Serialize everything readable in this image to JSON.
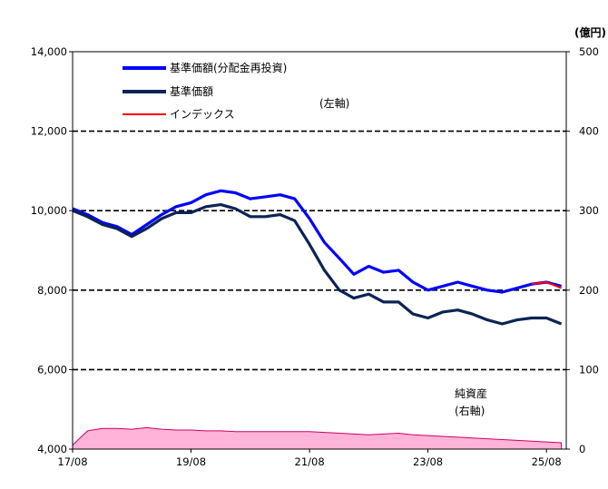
{
  "chart_data": {
    "type": "line",
    "right_unit": "(億円)",
    "left_axis": {
      "ylim": [
        4000,
        14000
      ],
      "ticks": [
        "4,000",
        "6,000",
        "8,000",
        "10,000",
        "12,000",
        "14,000"
      ]
    },
    "right_axis": {
      "ylim": [
        0,
        500
      ],
      "ticks": [
        "0",
        "100",
        "200",
        "300",
        "400",
        "500"
      ]
    },
    "x_ticks": [
      "17/08",
      "19/08",
      "21/08",
      "23/08",
      "25/08"
    ],
    "grid": "dashed horizontal lines at 6,000 / 8,000 / 10,000 / 12,000",
    "legend": {
      "placement": "top-left",
      "items": [
        {
          "label": "基準価額(分配金再投資)",
          "color": "#0000ff"
        },
        {
          "label": "基準価額",
          "color": "#0b2455"
        },
        {
          "label": "インデックス",
          "color": "#ff0000"
        }
      ]
    },
    "annotations": {
      "left_axis_note": "(左軸)",
      "net_assets_label": "純資産",
      "net_assets_axis": "(右軸)"
    },
    "x": [
      "2017-08",
      "2017-11",
      "2018-02",
      "2018-05",
      "2018-08",
      "2018-11",
      "2019-02",
      "2019-05",
      "2019-08",
      "2019-11",
      "2020-02",
      "2020-05",
      "2020-08",
      "2020-11",
      "2021-02",
      "2021-05",
      "2021-08",
      "2021-11",
      "2022-02",
      "2022-05",
      "2022-08",
      "2022-11",
      "2023-02",
      "2023-05",
      "2023-08",
      "2023-11",
      "2024-02",
      "2024-05",
      "2024-08",
      "2024-11",
      "2025-02",
      "2025-05",
      "2025-08",
      "2025-11"
    ],
    "series": [
      {
        "name": "基準価額(分配金再投資)",
        "axis": "left",
        "color": "#0000ff",
        "values": [
          10050,
          9900,
          9700,
          9600,
          9400,
          9650,
          9900,
          10100,
          10200,
          10400,
          10500,
          10450,
          10300,
          10350,
          10400,
          10300,
          9800,
          9200,
          8800,
          8400,
          8600,
          8450,
          8500,
          8200,
          8000,
          8100,
          8200,
          8100,
          8000,
          7950,
          8050,
          8150,
          8200,
          8100
        ]
      },
      {
        "name": "基準価額",
        "axis": "left",
        "color": "#0b2455",
        "values": [
          10000,
          9850,
          9650,
          9550,
          9350,
          9550,
          9800,
          9950,
          9950,
          10100,
          10150,
          10050,
          9850,
          9850,
          9900,
          9750,
          9150,
          8500,
          8000,
          7800,
          7900,
          7700,
          7700,
          7400,
          7300,
          7450,
          7500,
          7400,
          7250,
          7150,
          7250,
          7300,
          7300,
          7150
        ]
      },
      {
        "name": "インデックス",
        "axis": "left",
        "color": "#ff0000",
        "values": [
          null,
          null,
          null,
          null,
          null,
          null,
          null,
          null,
          null,
          null,
          null,
          null,
          null,
          null,
          null,
          null,
          null,
          null,
          null,
          null,
          null,
          null,
          null,
          null,
          null,
          null,
          null,
          null,
          null,
          null,
          null,
          8150,
          8200,
          8050
        ]
      },
      {
        "name": "純資産",
        "axis": "right",
        "type": "area",
        "color": "#ffb3d9",
        "values": [
          5,
          23,
          26,
          26,
          25,
          27,
          25,
          24,
          24,
          23,
          23,
          22,
          22,
          22,
          22,
          22,
          22,
          21,
          20,
          19,
          18,
          19,
          20,
          18,
          17,
          16,
          15,
          14,
          13,
          12,
          11,
          10,
          9,
          8
        ]
      }
    ]
  }
}
